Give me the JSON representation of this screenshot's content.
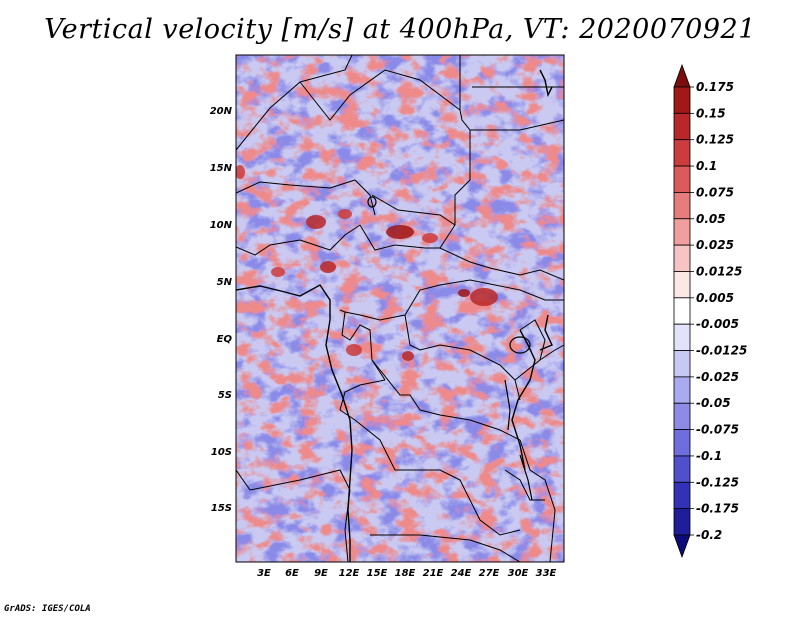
{
  "title": "Vertical velocity [m/s] at 400hPa, VT: 2020070921",
  "credit": "GrADS: IGES/COLA",
  "lat_labels": [
    "20N",
    "15N",
    "10N",
    "5N",
    "EQ",
    "5S",
    "10S",
    "15S"
  ],
  "lon_labels": [
    "3E",
    "6E",
    "9E",
    "12E",
    "15E",
    "18E",
    "21E",
    "24E",
    "27E",
    "30E",
    "33E"
  ],
  "colorbar": {
    "labels": [
      "0.175",
      "0.15",
      "0.125",
      "0.1",
      "0.075",
      "0.05",
      "0.025",
      "0.0125",
      "0.005",
      "-0.005",
      "-0.0125",
      "-0.025",
      "-0.05",
      "-0.075",
      "-0.1",
      "-0.125",
      "-0.175",
      "-0.2"
    ],
    "colors": [
      "#7a0e0e",
      "#a01818",
      "#b92828",
      "#cd3c3c",
      "#dc5a5a",
      "#e67c7c",
      "#f09e9e",
      "#f7c4c4",
      "#fce6e6",
      "#ffffff",
      "#e2e2fa",
      "#c8c8f5",
      "#aaaaf0",
      "#8c8ce6",
      "#6e6edc",
      "#5050cd",
      "#3232b9",
      "#1e1e9b",
      "#0c0c78"
    ]
  }
}
